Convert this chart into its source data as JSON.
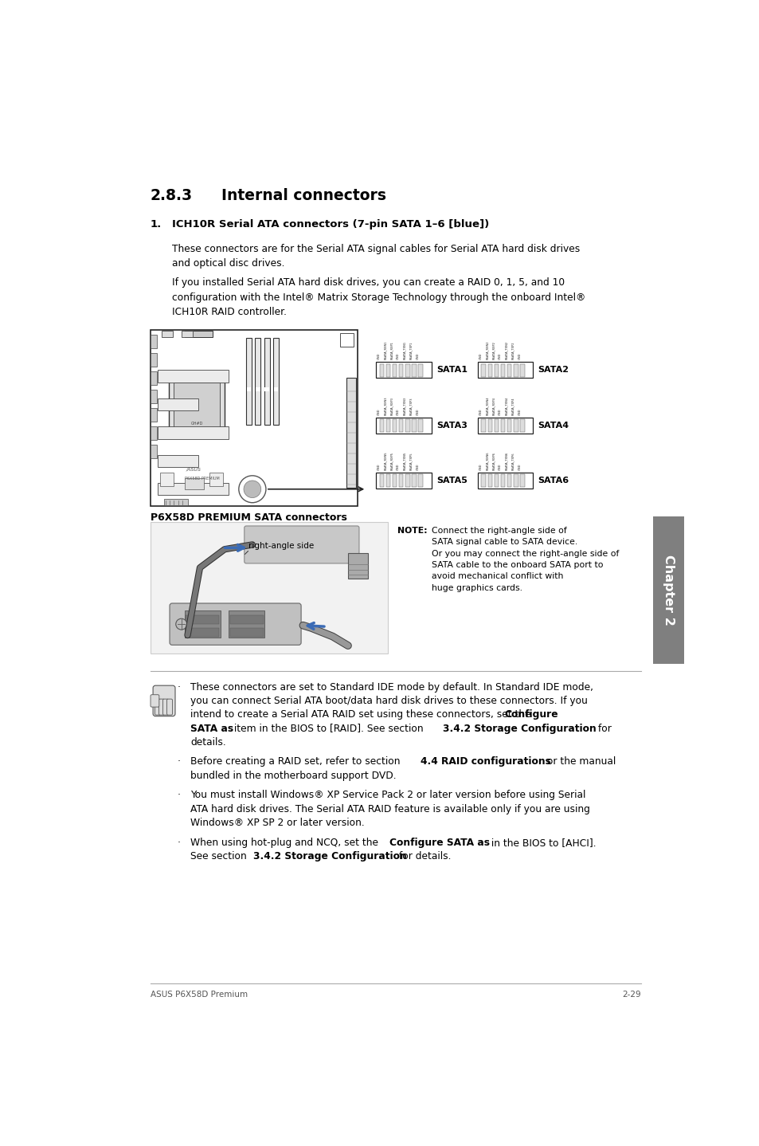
{
  "bg_color": "#ffffff",
  "page_width": 9.54,
  "page_height": 14.38,
  "text_color": "#000000",
  "footer_left": "ASUS P6X58D Premium",
  "footer_right": "2-29",
  "chapter_label": "Chapter 2",
  "lm": 0.9,
  "rm": 8.85,
  "indent1": 1.25,
  "indent2": 1.55,
  "fs_section": 13.5,
  "fs_sub": 9.5,
  "fs_body": 8.8,
  "fs_small": 7.5,
  "fs_note": 7.8
}
